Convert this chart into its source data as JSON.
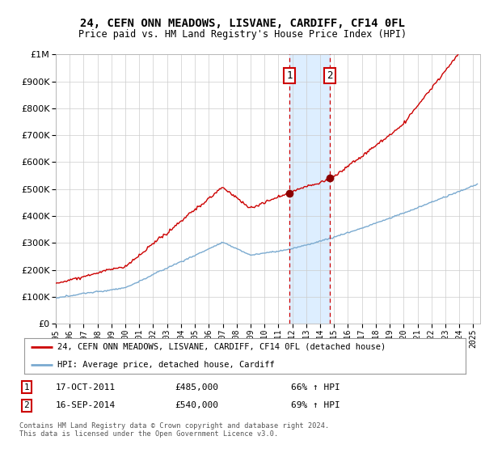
{
  "title": "24, CEFN ONN MEADOWS, LISVANE, CARDIFF, CF14 0FL",
  "subtitle": "Price paid vs. HM Land Registry's House Price Index (HPI)",
  "ylim": [
    0,
    1000000
  ],
  "xlim_start": 1995.0,
  "xlim_end": 2025.5,
  "yticks": [
    0,
    100000,
    200000,
    300000,
    400000,
    500000,
    600000,
    700000,
    800000,
    900000,
    1000000
  ],
  "ytick_labels": [
    "£0",
    "£100K",
    "£200K",
    "£300K",
    "£400K",
    "£500K",
    "£600K",
    "£700K",
    "£800K",
    "£900K",
    "£1M"
  ],
  "sale1_x": 2011.79,
  "sale1_y": 485000,
  "sale2_x": 2014.71,
  "sale2_y": 540000,
  "red_line_color": "#cc0000",
  "blue_line_color": "#7aaad0",
  "shade_color": "#ddeeff",
  "legend_line1": "24, CEFN ONN MEADOWS, LISVANE, CARDIFF, CF14 0FL (detached house)",
  "legend_line2": "HPI: Average price, detached house, Cardiff",
  "footer1": "Contains HM Land Registry data © Crown copyright and database right 2024.",
  "footer2": "This data is licensed under the Open Government Licence v3.0.",
  "note1_date": "17-OCT-2011",
  "note1_price": "£485,000",
  "note1_hpi": "66% ↑ HPI",
  "note2_date": "16-SEP-2014",
  "note2_price": "£540,000",
  "note2_hpi": "69% ↑ HPI",
  "background_color": "#ffffff",
  "grid_color": "#cccccc"
}
